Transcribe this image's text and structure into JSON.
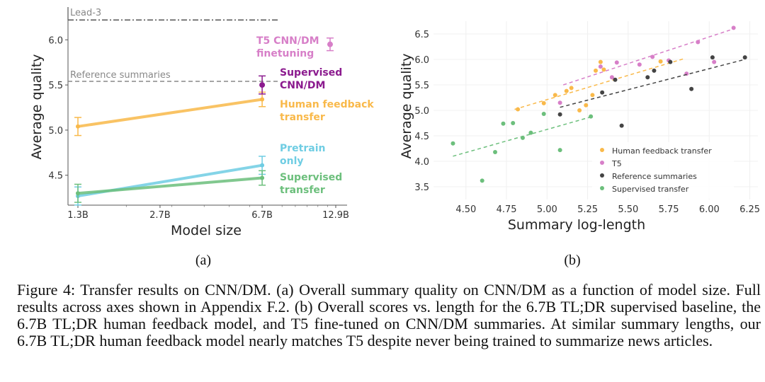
{
  "colors": {
    "human_feedback": "#F9B94A",
    "t5": "#D77FC8",
    "supervised_cnn": "#8B1A8E",
    "pretrain": "#6FCDE3",
    "supervised_transfer": "#6CBF7C",
    "reference": "#444444",
    "axis_text": "#333333",
    "lead_line": "#555555",
    "ref_line": "#888888"
  },
  "chart_data": [
    {
      "type": "line",
      "panel_label": "(a)",
      "xlabel": "Model size",
      "ylabel": "Average quality",
      "x_ticks": [
        "1.3B",
        "2.7B",
        "6.7B",
        "12.9B"
      ],
      "x_tick_values": [
        1.3,
        2.7,
        6.7,
        12.9
      ],
      "x_scale": "log",
      "xlim": [
        1.3,
        12.9
      ],
      "ylim": [
        4.2,
        6.3
      ],
      "y_ticks": [
        "4.5",
        "5.0",
        "5.5",
        "6.0"
      ],
      "y_tick_values": [
        4.5,
        5.0,
        5.5,
        6.0
      ],
      "baselines": [
        {
          "name": "Lead-3",
          "value": 6.22,
          "style": "dashdot"
        },
        {
          "name": "Reference summaries",
          "value": 5.54,
          "style": "dashed"
        }
      ],
      "series": [
        {
          "name": "Human feedback transfer",
          "label_lines": [
            "Human feedback",
            "transfer"
          ],
          "x": [
            1.3,
            6.7
          ],
          "y": [
            5.04,
            5.34
          ],
          "err": [
            0.1,
            0.08
          ],
          "color_key": "human_feedback"
        },
        {
          "name": "Pretrain only",
          "label_lines": [
            "Pretrain",
            "only"
          ],
          "x": [
            1.3,
            6.7
          ],
          "y": [
            4.27,
            4.61
          ],
          "err": [
            0.1,
            0.1
          ],
          "color_key": "pretrain"
        },
        {
          "name": "Supervised transfer",
          "label_lines": [
            "Supervised",
            "transfer"
          ],
          "x": [
            1.3,
            6.7
          ],
          "y": [
            4.3,
            4.47
          ],
          "err": [
            0.1,
            0.08
          ],
          "color_key": "supervised_transfer"
        }
      ],
      "points": [
        {
          "name": "Supervised CNN/DM",
          "label_lines": [
            "Supervised",
            "CNN/DM"
          ],
          "x": 6.7,
          "y": 5.5,
          "err": 0.1,
          "color_key": "supervised_cnn"
        },
        {
          "name": "T5 CNN/DM finetuning",
          "label_lines": [
            "T5 CNN/DM",
            "finetuning"
          ],
          "x": 12.9,
          "y": 5.95,
          "err": 0.07,
          "color_key": "t5"
        }
      ]
    },
    {
      "type": "scatter",
      "panel_label": "(b)",
      "xlabel": "Summary log-length",
      "ylabel": "Average quality",
      "xlim": [
        4.3,
        6.3
      ],
      "ylim": [
        3.25,
        6.75
      ],
      "x_ticks": [
        "4.50",
        "4.75",
        "5.00",
        "5.25",
        "5.50",
        "5.75",
        "6.00",
        "6.25"
      ],
      "x_tick_values": [
        4.5,
        4.75,
        5.0,
        5.25,
        5.5,
        5.75,
        6.0,
        6.25
      ],
      "y_ticks": [
        "3.5",
        "4.0",
        "4.5",
        "5.0",
        "5.5",
        "6.0",
        "6.5"
      ],
      "y_tick_values": [
        3.5,
        4.0,
        4.5,
        5.0,
        5.5,
        6.0,
        6.5
      ],
      "legend": [
        "Human feedback transfer",
        "T5",
        "Reference summaries",
        "Supervised transfer"
      ],
      "series": [
        {
          "name": "Human feedback transfer",
          "color_key": "human_feedback",
          "x": [
            4.82,
            4.98,
            5.05,
            5.12,
            5.15,
            5.2,
            5.24,
            5.28,
            5.3,
            5.33,
            5.35,
            5.7
          ],
          "y": [
            5.02,
            5.14,
            5.3,
            5.38,
            5.44,
            5.0,
            5.1,
            5.3,
            5.78,
            5.95,
            5.8,
            5.96
          ],
          "fit": {
            "x": [
              4.8,
              5.85
            ],
            "y": [
              5.02,
              6.02
            ]
          }
        },
        {
          "name": "T5",
          "color_key": "t5",
          "x": [
            5.08,
            5.33,
            5.4,
            5.43,
            5.57,
            5.65,
            5.75,
            5.86,
            5.93,
            6.03,
            6.15
          ],
          "y": [
            5.15,
            5.86,
            5.65,
            5.94,
            5.9,
            6.05,
            5.98,
            5.72,
            6.34,
            5.95,
            6.62
          ],
          "fit": {
            "x": [
              5.1,
              6.15
            ],
            "y": [
              5.5,
              6.6
            ]
          }
        },
        {
          "name": "Reference summaries",
          "color_key": "reference",
          "x": [
            5.08,
            5.34,
            5.42,
            5.46,
            5.62,
            5.66,
            5.76,
            5.89,
            6.02,
            6.22
          ],
          "y": [
            4.92,
            5.35,
            5.6,
            4.7,
            5.65,
            5.78,
            5.95,
            5.42,
            6.04,
            6.04
          ],
          "fit": {
            "x": [
              5.08,
              6.22
            ],
            "y": [
              5.06,
              6.0
            ]
          }
        },
        {
          "name": "Supervised transfer",
          "color_key": "supervised_transfer",
          "x": [
            4.42,
            4.6,
            4.68,
            4.73,
            4.79,
            4.85,
            4.9,
            4.98,
            5.08,
            5.27
          ],
          "y": [
            4.35,
            3.62,
            4.18,
            4.74,
            4.75,
            4.46,
            4.56,
            4.93,
            4.22,
            4.88
          ],
          "fit": {
            "x": [
              4.42,
              5.27
            ],
            "y": [
              4.1,
              4.87
            ]
          }
        }
      ]
    }
  ],
  "caption": "Figure 4: Transfer results on CNN/DM. (a) Overall summary quality on CNN/DM as a function of model size. Full results across axes shown in Appendix F.2. (b) Overall scores vs. length for the 6.7B TL;DR supervised baseline, the 6.7B TL;DR human feedback model, and T5 fine-tuned on CNN/DM summaries. At similar summary lengths, our 6.7B TL;DR human feedback model nearly matches T5 despite never being trained to summarize news articles."
}
